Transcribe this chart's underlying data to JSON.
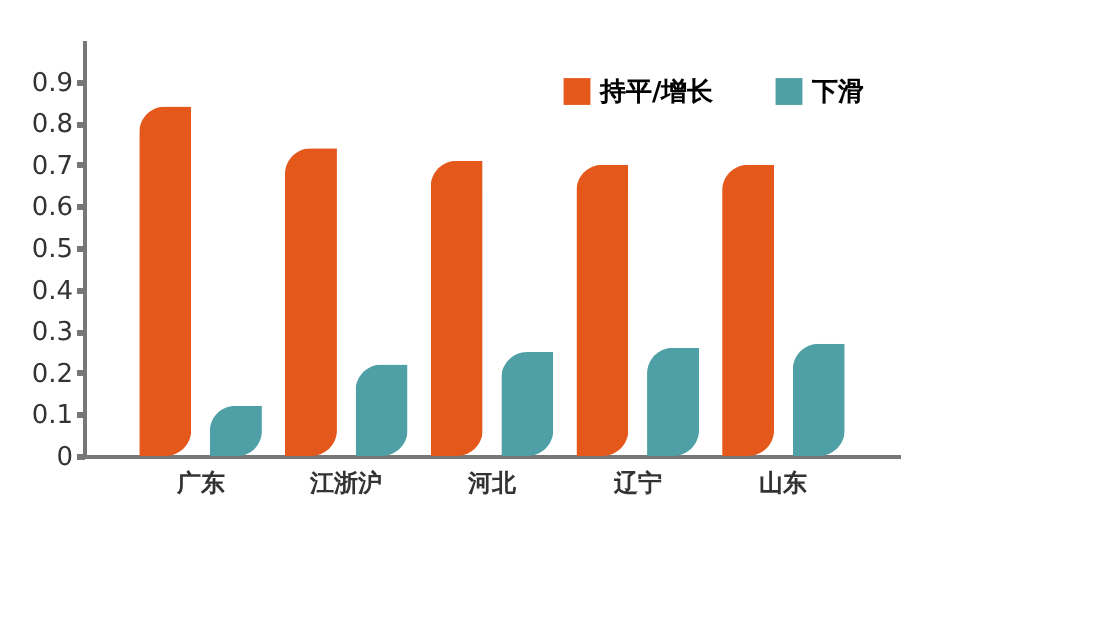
{
  "chart_data": {
    "type": "bar",
    "categories": [
      "广东",
      "江浙沪",
      "河北",
      "辽宁",
      "山东"
    ],
    "series": [
      {
        "name": "持平/增长",
        "color": "#e5581c",
        "values": [
          0.84,
          0.74,
          0.71,
          0.7,
          0.7
        ]
      },
      {
        "name": "下滑",
        "color": "#4fa0a6",
        "values": [
          0.12,
          0.22,
          0.25,
          0.26,
          0.27
        ]
      }
    ],
    "ylim": [
      0,
      1.0
    ],
    "yticks": [
      0,
      0.1,
      0.2,
      0.3,
      0.4,
      0.5,
      0.6,
      0.7,
      0.8,
      0.9
    ],
    "grid": false,
    "legend": "top right"
  }
}
